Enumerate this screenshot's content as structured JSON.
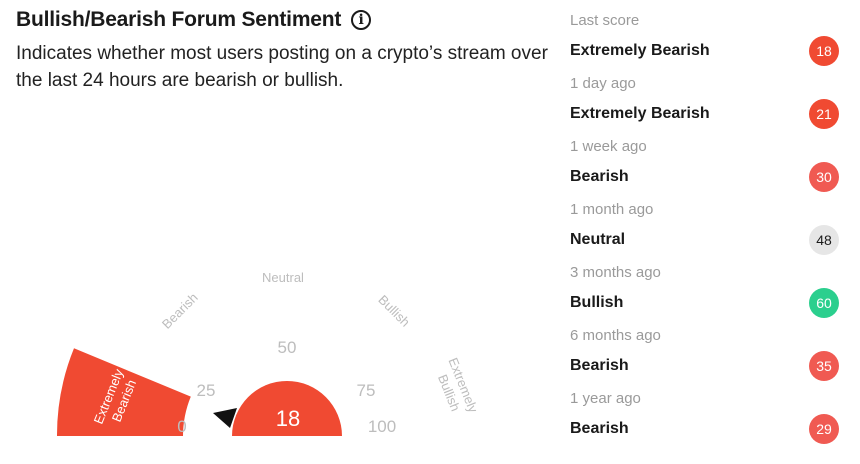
{
  "header": {
    "title": "Bullish/Bearish Forum Sentiment",
    "description": "Indicates whether most users posting on a crypto’s stream over the last 24 hours are bearish or bullish."
  },
  "gauge": {
    "value": 18,
    "value_label": "18",
    "range": [
      0,
      100
    ],
    "ticks": [
      "0",
      "25",
      "50",
      "75",
      "100"
    ],
    "zones": [
      "Bearish",
      "Neutral",
      "Bullish"
    ],
    "zone_extreme_bearish": [
      "Extremely",
      "Bearish"
    ],
    "zone_extreme_bullish": [
      "Extremely",
      "Bullish"
    ],
    "active_zone": "extremely-bearish",
    "active_color": "#f04a32",
    "muted_color": "#bdbdbd"
  },
  "history": [
    {
      "period": "Last score",
      "label": "Extremely Bearish",
      "score": "18",
      "color": "#f04a32",
      "text_color": "#ffffff"
    },
    {
      "period": "1 day ago",
      "label": "Extremely Bearish",
      "score": "21",
      "color": "#f04a32",
      "text_color": "#ffffff"
    },
    {
      "period": "1 week ago",
      "label": "Bearish",
      "score": "30",
      "color": "#f05a52",
      "text_color": "#ffffff"
    },
    {
      "period": "1 month ago",
      "label": "Neutral",
      "score": "48",
      "color": "#e6e6e6",
      "text_color": "#1a1a1a"
    },
    {
      "period": "3 months ago",
      "label": "Bullish",
      "score": "60",
      "color": "#2bcf8e",
      "text_color": "#ffffff"
    },
    {
      "period": "6 months ago",
      "label": "Bearish",
      "score": "35",
      "color": "#f05a52",
      "text_color": "#ffffff"
    },
    {
      "period": "1 year ago",
      "label": "Bearish",
      "score": "29",
      "color": "#f05a52",
      "text_color": "#ffffff"
    }
  ]
}
